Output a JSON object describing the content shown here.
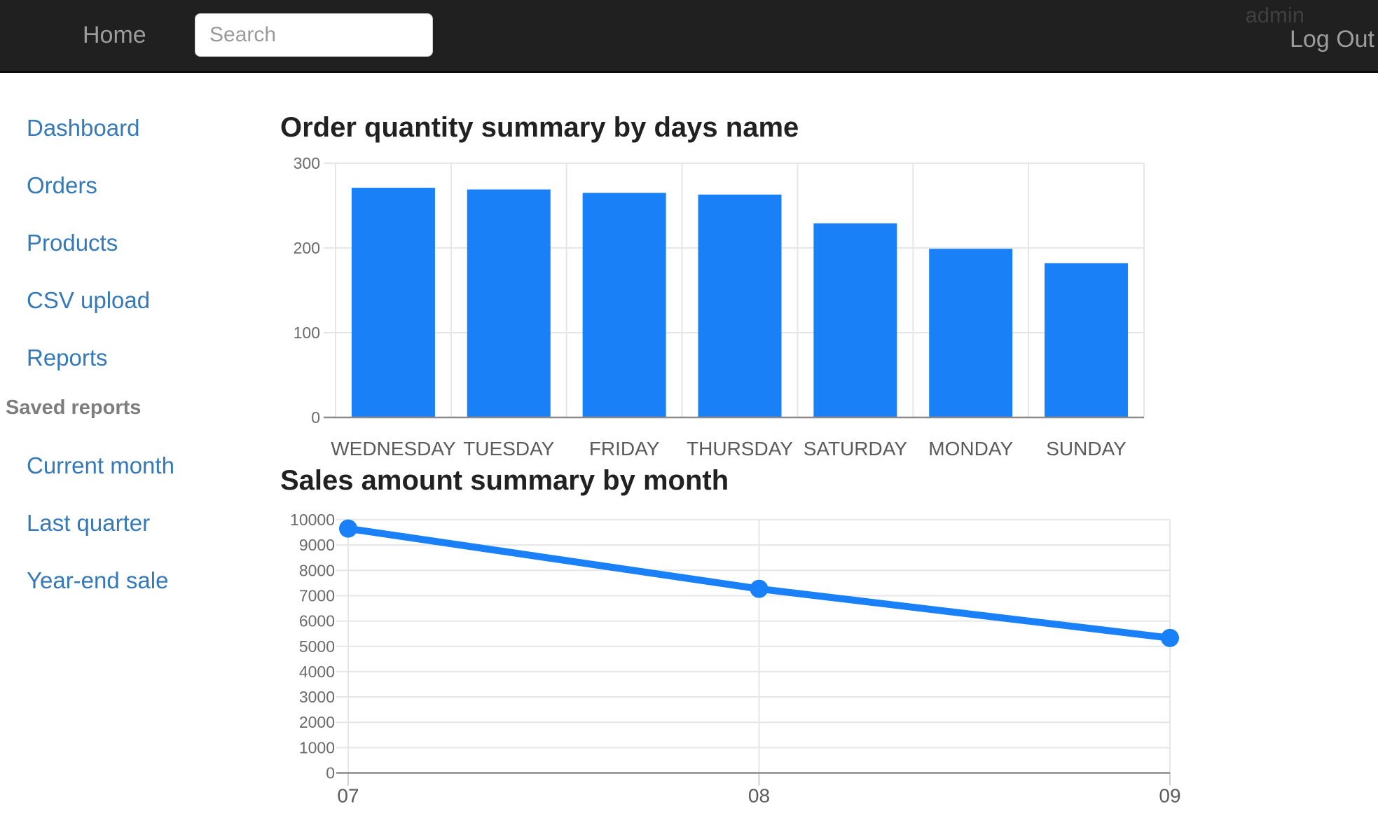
{
  "navbar": {
    "home_label": "Home",
    "search_placeholder": "Search",
    "username": "admin",
    "logout_label": "Log Out"
  },
  "sidebar": {
    "items": [
      {
        "label": "Dashboard"
      },
      {
        "label": "Orders"
      },
      {
        "label": "Products"
      },
      {
        "label": "CSV upload"
      },
      {
        "label": "Reports"
      }
    ],
    "section_header": "Saved reports",
    "saved_reports": [
      {
        "label": "Current month"
      },
      {
        "label": "Last quarter"
      },
      {
        "label": "Year-end sale"
      }
    ]
  },
  "theme": {
    "accent_blue": "#1a80f8",
    "link_blue": "#3579b8",
    "gridline": "#e6e6e6",
    "baseline": "#8a8a8a",
    "axis_label": "#6b6b6b",
    "category_label": "#5b5b5e"
  },
  "chart_data": [
    {
      "type": "bar",
      "title": "Order quantity summary by days name",
      "categories": [
        "WEDNESDAY",
        "TUESDAY",
        "FRIDAY",
        "THURSDAY",
        "SATURDAY",
        "MONDAY",
        "SUNDAY"
      ],
      "values": [
        271,
        269,
        265,
        263,
        229,
        199,
        182
      ],
      "xlabel": "",
      "ylabel": "",
      "ylim": [
        0,
        300
      ],
      "yticks": [
        0,
        100,
        200,
        300
      ],
      "grid": true,
      "legend": "none",
      "color": "#1a80f8"
    },
    {
      "type": "line",
      "title": "Sales amount summary by month",
      "x": [
        "07",
        "08",
        "09"
      ],
      "values": [
        9650,
        7270,
        5330
      ],
      "xlabel": "",
      "ylabel": "",
      "ylim": [
        0,
        10000
      ],
      "ytick_step": 1000,
      "grid": true,
      "legend": "none",
      "color": "#1a80f8"
    }
  ]
}
